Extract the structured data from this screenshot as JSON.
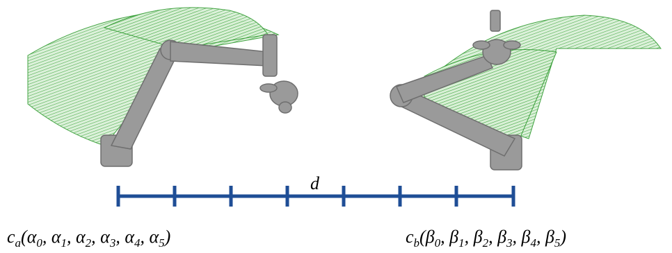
{
  "ruler_label": "d",
  "left_label": {
    "parts": [
      {
        "text": "c"
      },
      {
        "text": "a",
        "sub": true
      },
      {
        "text": "(α"
      },
      {
        "text": "0",
        "sub": true
      },
      {
        "text": ", α"
      },
      {
        "text": "1",
        "sub": true
      },
      {
        "text": ", α"
      },
      {
        "text": "2",
        "sub": true
      },
      {
        "text": ", α"
      },
      {
        "text": "3",
        "sub": true
      },
      {
        "text": ", α"
      },
      {
        "text": "4",
        "sub": true
      },
      {
        "text": ", α"
      },
      {
        "text": "5",
        "sub": true
      },
      {
        "text": ")"
      }
    ]
  },
  "right_label": {
    "parts": [
      {
        "text": "c"
      },
      {
        "text": "b",
        "sub": true
      },
      {
        "text": "(β"
      },
      {
        "text": "0",
        "sub": true
      },
      {
        "text": ", β"
      },
      {
        "text": "1",
        "sub": true
      },
      {
        "text": ", β"
      },
      {
        "text": "2",
        "sub": true
      },
      {
        "text": ", β"
      },
      {
        "text": "3",
        "sub": true
      },
      {
        "text": ", β"
      },
      {
        "text": "4",
        "sub": true
      },
      {
        "text": ", β"
      },
      {
        "text": "5",
        "sub": true
      },
      {
        "text": ")"
      }
    ]
  }
}
